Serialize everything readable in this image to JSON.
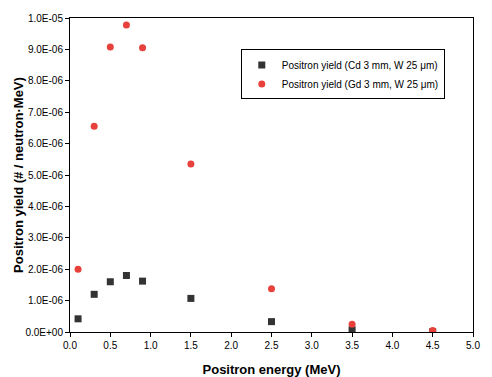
{
  "chart_data": {
    "type": "scatter",
    "x_label": "Positron energy (MeV)",
    "y_label": "Positron yield (# / neutron·MeV)",
    "x": [
      0.1,
      0.3,
      0.5,
      0.7,
      0.9,
      1.5,
      2.5,
      3.5,
      4.5
    ],
    "series": [
      {
        "name": "Positron yield (Cd 3 mm, W 25 μm)",
        "color": "#333333",
        "marker": "square",
        "values": [
          4.2e-07,
          1.2e-06,
          1.6e-06,
          1.8e-06,
          1.62e-06,
          1.07e-06,
          3.3e-07,
          7e-08,
          1e-08
        ]
      },
      {
        "name": "Positron yield (Gd 3 mm, W 25 μm)",
        "color": "#e8413c",
        "marker": "circle",
        "values": [
          2e-06,
          6.55e-06,
          9.08e-06,
          9.78e-06,
          9.05e-06,
          5.35e-06,
          1.38e-06,
          2.5e-07,
          5e-08
        ]
      }
    ],
    "xlim": [
      0,
      5
    ],
    "xticks": [
      {
        "value": 0,
        "label": "0.0"
      },
      {
        "value": 0.5,
        "label": "0.5"
      },
      {
        "value": 1,
        "label": "1.0"
      },
      {
        "value": 1.5,
        "label": "1.5"
      },
      {
        "value": 2,
        "label": "2.0"
      },
      {
        "value": 2.5,
        "label": "2.5"
      },
      {
        "value": 3,
        "label": "3.0"
      },
      {
        "value": 3.5,
        "label": "3.5"
      },
      {
        "value": 4,
        "label": "4.0"
      },
      {
        "value": 4.5,
        "label": "4.5"
      },
      {
        "value": 5,
        "label": "5.0"
      }
    ],
    "ylim": [
      0,
      1e-05
    ],
    "yticks": [
      {
        "value": 0,
        "label": "0.0E+00"
      },
      {
        "value": 1e-06,
        "label": "1.0E-06"
      },
      {
        "value": 2e-06,
        "label": "2.0E-06"
      },
      {
        "value": 3e-06,
        "label": "3.0E-06"
      },
      {
        "value": 4e-06,
        "label": "4.0E-06"
      },
      {
        "value": 5e-06,
        "label": "5.0E-06"
      },
      {
        "value": 6e-06,
        "label": "6.0E-06"
      },
      {
        "value": 7e-06,
        "label": "7.0E-06"
      },
      {
        "value": 8e-06,
        "label": "8.0E-06"
      },
      {
        "value": 9e-06,
        "label": "9.0E-06"
      },
      {
        "value": 1e-05,
        "label": "1.0E-05"
      }
    ],
    "grid": false,
    "legend": "upper right"
  }
}
